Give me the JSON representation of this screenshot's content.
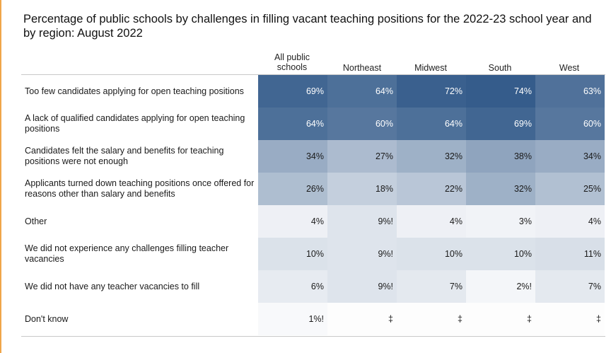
{
  "chart_data": {
    "type": "heatmap",
    "title": "Percentage of public schools by challenges in filling vacant teaching positions for the 2022-23 school year and by region: August 2022",
    "columns": [
      "All public schools",
      "Northeast",
      "Midwest",
      "South",
      "West"
    ],
    "rows": [
      {
        "label": "Too few candidates applying for open teaching positions",
        "values": [
          "69%",
          "64%",
          "72%",
          "74%",
          "63%"
        ]
      },
      {
        "label": "A lack of qualified candidates applying for open teaching positions",
        "values": [
          "64%",
          "60%",
          "64%",
          "69%",
          "60%"
        ]
      },
      {
        "label": "Candidates felt the salary and benefits for teaching positions were not enough",
        "values": [
          "34%",
          "27%",
          "32%",
          "38%",
          "34%"
        ]
      },
      {
        "label": "Applicants turned down teaching positions once offered for reasons other than salary and benefits",
        "values": [
          "26%",
          "18%",
          "22%",
          "32%",
          "25%"
        ]
      },
      {
        "label": "Other",
        "values": [
          "4%",
          "9%!",
          "4%",
          "3%",
          "4%"
        ]
      },
      {
        "label": "We did not experience any challenges filling teacher vacancies",
        "values": [
          "10%",
          "9%!",
          "10%",
          "10%",
          "11%"
        ]
      },
      {
        "label": "We did not have any teacher vacancies to fill",
        "values": [
          "6%",
          "9%!",
          "7%",
          "2%!",
          "7%"
        ]
      },
      {
        "label": "Don't know",
        "values": [
          "1%!",
          "‡",
          "‡",
          "‡",
          "‡"
        ]
      }
    ]
  }
}
